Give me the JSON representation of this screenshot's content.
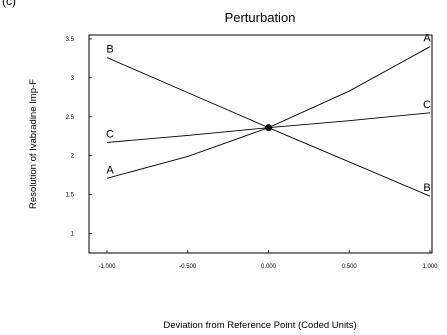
{
  "panel_label": "(c)",
  "chart_data": {
    "type": "line",
    "title": "Perturbation",
    "xlabel": "Deviation from Reference Point (Coded Units)",
    "ylabel": "Resolution of Ivabradine Imp-F",
    "xlim": [
      -1.0,
      1.0
    ],
    "ylim": [
      0.75,
      3.55
    ],
    "x_ticks": [
      -1.0,
      -0.5,
      0.0,
      0.5,
      1.0
    ],
    "x_tick_labels": [
      "-1.000",
      "-0.500",
      "0.000",
      "0.500",
      "1.000"
    ],
    "y_ticks": [
      1,
      1.5,
      2,
      2.5,
      3,
      3.5
    ],
    "y_tick_labels": [
      "1",
      "1.5",
      "2",
      "2.5",
      "3",
      "3.5"
    ],
    "grid": false,
    "reference_point": {
      "x": 0.0,
      "y": 2.36
    },
    "series": [
      {
        "name": "A",
        "x": [
          -1.0,
          -0.5,
          0.0,
          0.5,
          1.0
        ],
        "values": [
          1.71,
          1.99,
          2.36,
          2.83,
          3.4
        ]
      },
      {
        "name": "B",
        "x": [
          -1.0,
          -0.5,
          0.0,
          0.5,
          1.0
        ],
        "values": [
          3.26,
          2.81,
          2.36,
          1.92,
          1.48
        ]
      },
      {
        "name": "C",
        "x": [
          -1.0,
          -0.5,
          0.0,
          0.5,
          1.0
        ],
        "values": [
          2.17,
          2.26,
          2.36,
          2.45,
          2.55
        ]
      }
    ]
  }
}
